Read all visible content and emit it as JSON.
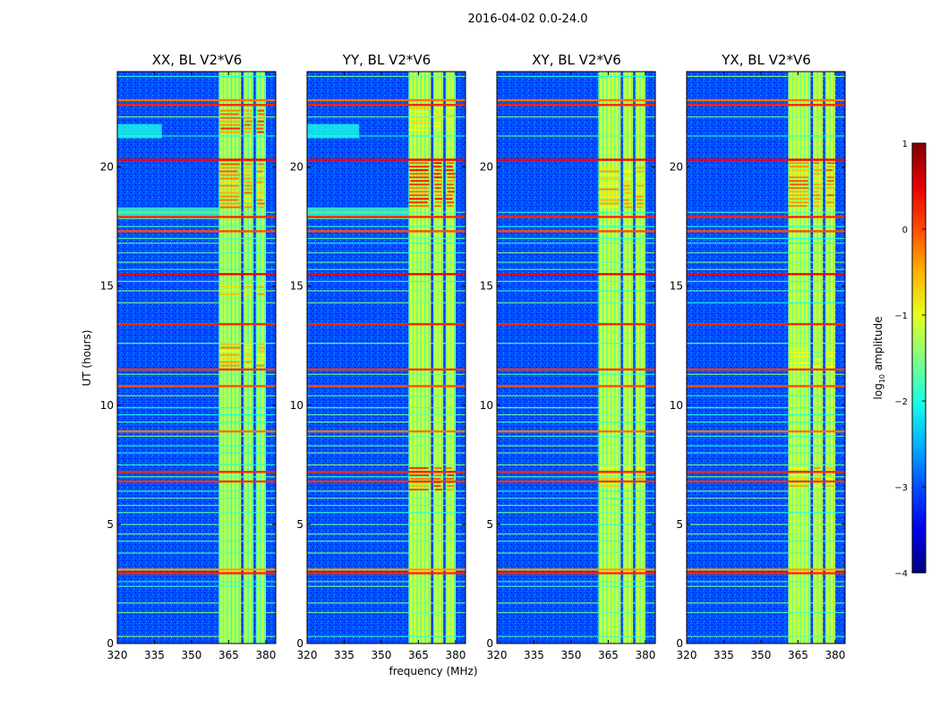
{
  "figure": {
    "suptitle": "2016-04-02 0.0-24.0",
    "xlabel": "frequency (MHz)",
    "ylabel": "UT (hours)",
    "colorbar": {
      "label_main": "log",
      "label_sub": "10",
      "label_rest": " amplitude",
      "ticks": [
        1,
        0,
        -1,
        -2,
        -3,
        -4
      ],
      "tick_labels": [
        "1",
        "0",
        "−1",
        "−2",
        "−3",
        "−4"
      ],
      "range": [
        -4,
        1
      ],
      "colormap": "jet",
      "colors": [
        "#00007f",
        "#0000ff",
        "#007fff",
        "#00ffff",
        "#7fff7f",
        "#ffff00",
        "#ff7f00",
        "#ff0000",
        "#7f0000"
      ]
    }
  },
  "chart_data": [
    {
      "type": "heatmap",
      "title": "XX, BL V2*V6",
      "xlabel": "frequency (MHz)",
      "ylabel": "UT (hours)",
      "xlim": [
        320,
        384
      ],
      "ylim": [
        0,
        24
      ],
      "xticks": [
        320,
        335,
        350,
        365,
        380
      ],
      "yticks": [
        0,
        5,
        10,
        15,
        20
      ],
      "value_unit": "log10 amplitude",
      "background_value": -3.0,
      "rfi_bands_mhz": [
        [
          361,
          370
        ],
        [
          371,
          375
        ],
        [
          376,
          380
        ]
      ],
      "rfi_band_value": -1.2,
      "rfi_bursts": [
        {
          "f": [
            361,
            380
          ],
          "t": [
            21.4,
            22.4
          ],
          "value": 0.2
        },
        {
          "f": [
            361,
            380
          ],
          "t": [
            18.3,
            20.3
          ],
          "value": 0.0
        },
        {
          "f": [
            361,
            380
          ],
          "t": [
            11.6,
            12.6
          ],
          "value": -0.2
        },
        {
          "f": [
            361,
            380
          ],
          "t": [
            14.6,
            15.0
          ],
          "value": -0.3
        }
      ],
      "rfi_hours": [
        0.3,
        1.3,
        1.7,
        2.4,
        2.6,
        2.95,
        3.1,
        3.8,
        4.3,
        4.6,
        5.0,
        5.5,
        5.8,
        6.1,
        6.4,
        6.8,
        7.0,
        7.2,
        7.5,
        8.0,
        8.3,
        8.7,
        8.9,
        9.3,
        9.6,
        9.9,
        10.4,
        10.8,
        11.3,
        11.5,
        12.6,
        13.4,
        14.3,
        14.8,
        15.2,
        15.5,
        15.7,
        16.0,
        16.4,
        16.8,
        17.0,
        17.3,
        17.5,
        17.9,
        18.1,
        20.3,
        21.3,
        22.1,
        22.6,
        22.8,
        23.8
      ],
      "wideband_hour_values": [
        {
          "t": 2.95,
          "value": 0.2
        },
        {
          "t": 3.1,
          "value": -0.4
        },
        {
          "t": 6.8,
          "value": 0.1
        },
        {
          "t": 7.2,
          "value": 0.2
        },
        {
          "t": 8.9,
          "value": -0.2
        },
        {
          "t": 10.8,
          "value": 0.0
        },
        {
          "t": 11.5,
          "value": 0.1
        },
        {
          "t": 13.4,
          "value": 0.2
        },
        {
          "t": 15.5,
          "value": 0.4
        },
        {
          "t": 17.3,
          "value": 0.0
        },
        {
          "t": 17.9,
          "value": 0.2
        },
        {
          "t": 20.3,
          "value": 0.4
        },
        {
          "t": 22.6,
          "value": 0.2
        },
        {
          "t": 22.8,
          "value": -0.2
        }
      ],
      "diffuse_bands": [
        {
          "f": [
            320,
            338
          ],
          "t": [
            21.2,
            21.8
          ],
          "value": -2.0
        },
        {
          "f": [
            320,
            361
          ],
          "t": [
            17.8,
            18.3
          ],
          "value": -1.8
        }
      ]
    },
    {
      "type": "heatmap",
      "title": "YY, BL V2*V6",
      "xlabel": "frequency (MHz)",
      "ylabel": "UT (hours)",
      "xlim": [
        320,
        384
      ],
      "ylim": [
        0,
        24
      ],
      "xticks": [
        320,
        335,
        350,
        365,
        380
      ],
      "yticks": [
        0,
        5,
        10,
        15,
        20
      ],
      "value_unit": "log10 amplitude",
      "background_value": -3.0,
      "rfi_bands_mhz": [
        [
          361,
          370
        ],
        [
          371,
          375
        ],
        [
          376,
          380
        ]
      ],
      "rfi_band_value": -1.1,
      "rfi_bursts": [
        {
          "f": [
            361,
            380
          ],
          "t": [
            18.3,
            20.2
          ],
          "value": 0.4
        },
        {
          "f": [
            361,
            380
          ],
          "t": [
            6.4,
            7.4
          ],
          "value": 0.2
        },
        {
          "f": [
            361,
            380
          ],
          "t": [
            21.5,
            22.5
          ],
          "value": -0.5
        }
      ],
      "rfi_hours": [
        0.3,
        1.3,
        1.7,
        2.4,
        2.6,
        2.95,
        3.1,
        3.8,
        4.3,
        4.6,
        5.0,
        5.5,
        5.8,
        6.1,
        6.4,
        6.8,
        7.0,
        7.2,
        7.5,
        8.0,
        8.3,
        8.7,
        8.9,
        9.3,
        9.6,
        9.9,
        10.4,
        10.8,
        11.3,
        11.5,
        12.6,
        13.4,
        14.3,
        14.8,
        15.2,
        15.5,
        15.7,
        16.0,
        16.4,
        16.8,
        17.0,
        17.3,
        17.5,
        17.9,
        18.1,
        20.3,
        21.3,
        22.1,
        22.6,
        22.8,
        23.8
      ],
      "wideband_hour_values": [
        {
          "t": 2.95,
          "value": 0.2
        },
        {
          "t": 3.1,
          "value": -0.4
        },
        {
          "t": 6.8,
          "value": 0.1
        },
        {
          "t": 7.2,
          "value": 0.2
        },
        {
          "t": 8.9,
          "value": -0.2
        },
        {
          "t": 10.8,
          "value": 0.0
        },
        {
          "t": 11.5,
          "value": 0.1
        },
        {
          "t": 13.4,
          "value": 0.2
        },
        {
          "t": 15.5,
          "value": 0.4
        },
        {
          "t": 17.3,
          "value": 0.0
        },
        {
          "t": 17.9,
          "value": 0.2
        },
        {
          "t": 20.3,
          "value": 0.4
        },
        {
          "t": 22.6,
          "value": 0.2
        },
        {
          "t": 22.8,
          "value": -0.2
        }
      ],
      "diffuse_bands": [
        {
          "f": [
            320,
            341
          ],
          "t": [
            21.2,
            21.8
          ],
          "value": -2.0
        },
        {
          "f": [
            320,
            361
          ],
          "t": [
            17.8,
            18.3
          ],
          "value": -1.8
        }
      ]
    },
    {
      "type": "heatmap",
      "title": "XY, BL V2*V6",
      "xlabel": "frequency (MHz)",
      "ylabel": "UT (hours)",
      "xlim": [
        320,
        384
      ],
      "ylim": [
        0,
        24
      ],
      "xticks": [
        320,
        335,
        350,
        365,
        380
      ],
      "yticks": [
        0,
        5,
        10,
        15,
        20
      ],
      "value_unit": "log10 amplitude",
      "background_value": -3.0,
      "rfi_bands_mhz": [
        [
          361,
          370
        ],
        [
          371,
          375
        ],
        [
          376,
          380
        ]
      ],
      "rfi_band_value": -1.1,
      "rfi_bursts": [
        {
          "f": [
            361,
            380
          ],
          "t": [
            18.3,
            20.0
          ],
          "value": -0.3
        },
        {
          "f": [
            361,
            380
          ],
          "t": [
            6.6,
            7.4
          ],
          "value": -0.4
        }
      ],
      "rfi_hours": [
        0.3,
        1.3,
        1.7,
        2.4,
        2.6,
        2.95,
        3.1,
        3.8,
        4.3,
        4.6,
        5.0,
        5.5,
        5.8,
        6.1,
        6.4,
        6.8,
        7.0,
        7.2,
        7.5,
        8.0,
        8.3,
        8.7,
        8.9,
        9.3,
        9.6,
        9.9,
        10.4,
        10.8,
        11.3,
        11.5,
        12.6,
        13.4,
        14.3,
        14.8,
        15.2,
        15.5,
        15.7,
        16.0,
        16.4,
        16.8,
        17.0,
        17.3,
        17.5,
        17.9,
        18.1,
        20.3,
        21.3,
        22.1,
        22.6,
        22.8,
        23.8
      ],
      "wideband_hour_values": [
        {
          "t": 2.95,
          "value": 0.2
        },
        {
          "t": 3.1,
          "value": -0.4
        },
        {
          "t": 6.8,
          "value": 0.1
        },
        {
          "t": 7.2,
          "value": 0.2
        },
        {
          "t": 8.9,
          "value": -0.2
        },
        {
          "t": 10.8,
          "value": 0.0
        },
        {
          "t": 11.5,
          "value": 0.1
        },
        {
          "t": 13.4,
          "value": 0.2
        },
        {
          "t": 15.5,
          "value": 0.4
        },
        {
          "t": 17.3,
          "value": 0.0
        },
        {
          "t": 17.9,
          "value": 0.2
        },
        {
          "t": 20.3,
          "value": 0.4
        },
        {
          "t": 22.6,
          "value": 0.2
        },
        {
          "t": 22.8,
          "value": -0.2
        }
      ],
      "diffuse_bands": []
    },
    {
      "type": "heatmap",
      "title": "YX, BL V2*V6",
      "xlabel": "frequency (MHz)",
      "ylabel": "UT (hours)",
      "xlim": [
        320,
        384
      ],
      "ylim": [
        0,
        24
      ],
      "xticks": [
        320,
        335,
        350,
        365,
        380
      ],
      "yticks": [
        0,
        5,
        10,
        15,
        20
      ],
      "value_unit": "log10 amplitude",
      "background_value": -3.0,
      "rfi_bands_mhz": [
        [
          361,
          370
        ],
        [
          371,
          375
        ],
        [
          376,
          380
        ]
      ],
      "rfi_band_value": -1.1,
      "rfi_bursts": [
        {
          "f": [
            361,
            380
          ],
          "t": [
            18.3,
            20.2
          ],
          "value": 0.0
        },
        {
          "f": [
            361,
            380
          ],
          "t": [
            11.6,
            12.4
          ],
          "value": -0.8
        },
        {
          "f": [
            361,
            380
          ],
          "t": [
            6.6,
            7.4
          ],
          "value": -0.3
        }
      ],
      "rfi_hours": [
        0.3,
        1.3,
        1.7,
        2.4,
        2.6,
        2.95,
        3.1,
        3.8,
        4.3,
        4.6,
        5.0,
        5.5,
        5.8,
        6.1,
        6.4,
        6.8,
        7.0,
        7.2,
        7.5,
        8.0,
        8.3,
        8.7,
        8.9,
        9.3,
        9.6,
        9.9,
        10.4,
        10.8,
        11.3,
        11.5,
        12.6,
        13.4,
        14.3,
        14.8,
        15.2,
        15.5,
        15.7,
        16.0,
        16.4,
        16.8,
        17.0,
        17.3,
        17.5,
        17.9,
        18.1,
        20.3,
        21.3,
        22.1,
        22.6,
        22.8,
        23.8
      ],
      "wideband_hour_values": [
        {
          "t": 2.95,
          "value": 0.2
        },
        {
          "t": 3.1,
          "value": -0.4
        },
        {
          "t": 6.8,
          "value": 0.1
        },
        {
          "t": 7.2,
          "value": 0.2
        },
        {
          "t": 8.9,
          "value": -0.2
        },
        {
          "t": 10.8,
          "value": 0.0
        },
        {
          "t": 11.5,
          "value": 0.1
        },
        {
          "t": 13.4,
          "value": 0.2
        },
        {
          "t": 15.5,
          "value": 0.4
        },
        {
          "t": 17.3,
          "value": 0.0
        },
        {
          "t": 17.9,
          "value": 0.2
        },
        {
          "t": 20.3,
          "value": 0.4
        },
        {
          "t": 22.6,
          "value": 0.2
        },
        {
          "t": 22.8,
          "value": -0.2
        }
      ],
      "diffuse_bands": []
    }
  ]
}
